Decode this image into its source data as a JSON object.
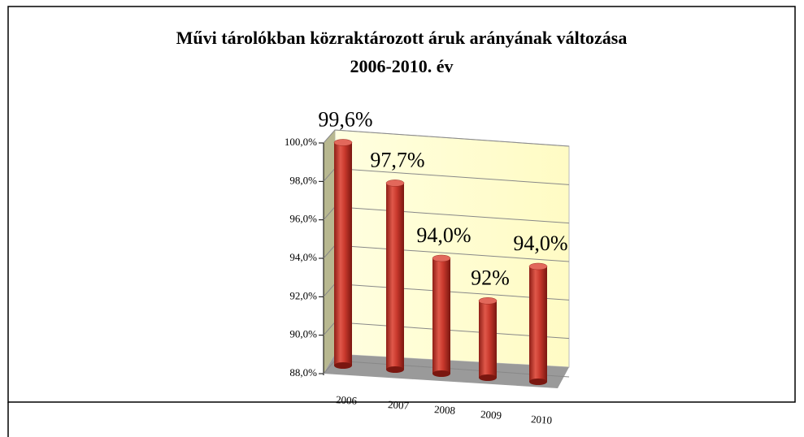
{
  "chart_data": {
    "type": "bar",
    "title": "Művi tárolókban közraktározott áruk arányának változása",
    "subtitle": "2006-2010. év",
    "categories": [
      "2006",
      "2007",
      "2008",
      "2009",
      "2010"
    ],
    "values": [
      99.6,
      97.7,
      94.0,
      92,
      94.0
    ],
    "value_labels": [
      "99,6%",
      "97,7%",
      "94,0%",
      "92%",
      "94,0%"
    ],
    "color": "#c0392b",
    "ylim": [
      88,
      100
    ],
    "yticks": [
      {
        "value": 88,
        "label": "88,0%"
      },
      {
        "value": 90,
        "label": "90,0%"
      },
      {
        "value": 92,
        "label": "92,0%"
      },
      {
        "value": 94,
        "label": "94,0%"
      },
      {
        "value": 96,
        "label": "96,0%"
      },
      {
        "value": 98,
        "label": "98,0%"
      },
      {
        "value": 100,
        "label": "100,0%"
      }
    ],
    "grid": true
  }
}
